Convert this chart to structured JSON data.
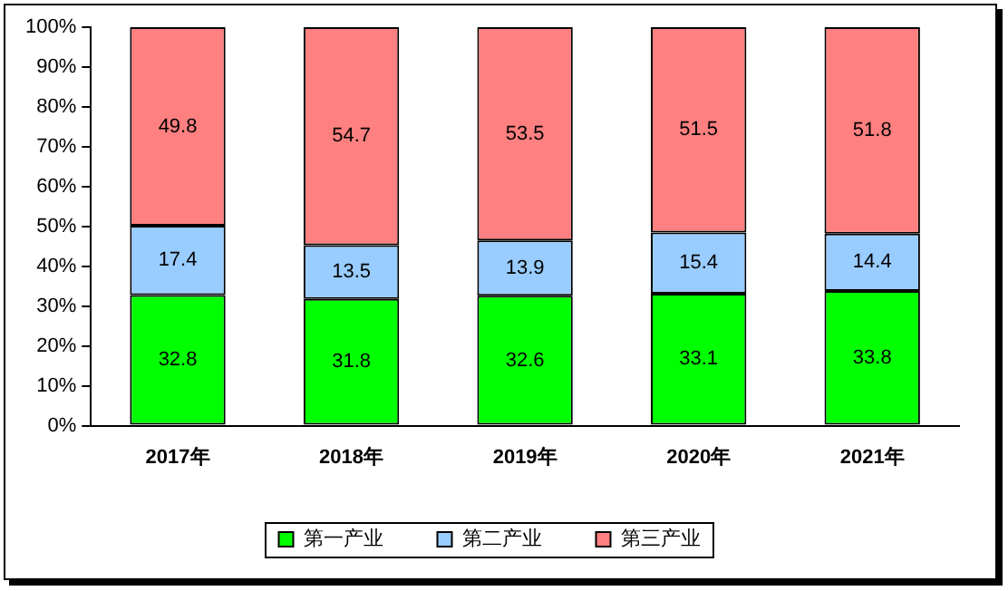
{
  "chart_data": {
    "type": "bar",
    "stacked": true,
    "categories": [
      "2017年",
      "2018年",
      "2019年",
      "2020年",
      "2021年"
    ],
    "series": [
      {
        "name": "第一产业",
        "color": "#00ff00",
        "values": [
          32.8,
          31.8,
          32.6,
          33.1,
          33.8
        ]
      },
      {
        "name": "第二产业",
        "color": "#99ccff",
        "values": [
          17.4,
          13.5,
          13.9,
          15.4,
          14.4
        ]
      },
      {
        "name": "第三产业",
        "color": "#ff8080",
        "values": [
          49.8,
          54.7,
          53.5,
          51.5,
          51.8
        ]
      }
    ],
    "ylim": [
      0,
      100
    ],
    "yticks": [
      {
        "value": 0,
        "label": "0%"
      },
      {
        "value": 10,
        "label": "10%"
      },
      {
        "value": 20,
        "label": "20%"
      },
      {
        "value": 30,
        "label": "30%"
      },
      {
        "value": 40,
        "label": "40%"
      },
      {
        "value": 50,
        "label": "50%"
      },
      {
        "value": 60,
        "label": "60%"
      },
      {
        "value": 70,
        "label": "70%"
      },
      {
        "value": 80,
        "label": "80%"
      },
      {
        "value": 90,
        "label": "90%"
      },
      {
        "value": 100,
        "label": "100%"
      }
    ],
    "grid": false,
    "legend": "bottom",
    "data_labels": true
  }
}
